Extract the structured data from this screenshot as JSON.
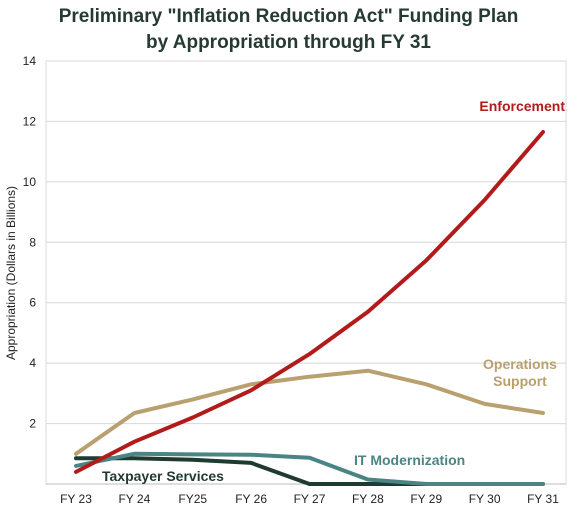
{
  "chart_data": {
    "type": "line",
    "title_line1": "Preliminary \"Inflation Reduction Act\" Funding Plan",
    "title_line2": "by Appropriation through FY 31",
    "ylabel": "Appropriation (Dollars in Billions)",
    "xlabel": "",
    "categories": [
      "FY 23",
      "FY 24",
      "FY25",
      "FY 26",
      "FY 27",
      "FY 28",
      "FY 29",
      "FY 30",
      "FY 31"
    ],
    "ylim": [
      0,
      14
    ],
    "yticks": [
      2,
      4,
      6,
      8,
      10,
      12,
      14
    ],
    "grid": "horizontal",
    "series": [
      {
        "name": "Enforcement",
        "color": "#b31b1b",
        "values": [
          0.4,
          1.4,
          2.2,
          3.1,
          4.3,
          5.7,
          7.4,
          9.4,
          11.65
        ]
      },
      {
        "name": "Operations Support",
        "label_lines": [
          "Operations",
          "Support"
        ],
        "color": "#b9a06f",
        "values": [
          1.0,
          2.35,
          2.8,
          3.3,
          3.55,
          3.75,
          3.3,
          2.65,
          2.35
        ]
      },
      {
        "name": "IT Modernization",
        "color": "#4a8584",
        "values": [
          0.6,
          1.0,
          0.98,
          0.97,
          0.87,
          0.15,
          0.0,
          0.0,
          0.0
        ]
      },
      {
        "name": "Taxpayer Services",
        "color": "#1f3a30",
        "values": [
          0.85,
          0.85,
          0.8,
          0.7,
          0.0,
          0.0,
          0.0,
          0.0,
          0.0
        ]
      }
    ]
  }
}
